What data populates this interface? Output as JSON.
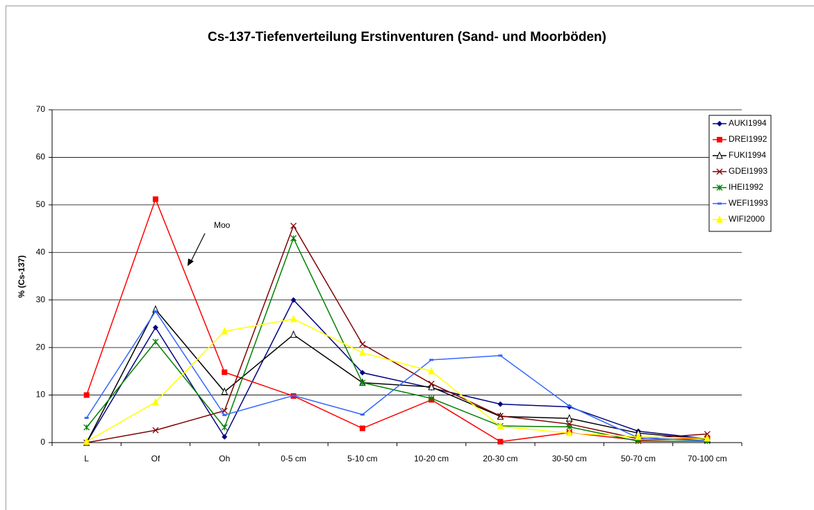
{
  "chart_data": {
    "type": "line",
    "title": "Cs-137-Tiefenverteilung Erstinventuren (Sand- und Moorböden)",
    "y_label": "% (Cs-137)",
    "annotation": "Moo",
    "categories": [
      "L",
      "Of",
      "Oh",
      "0-5 cm",
      "5-10 cm",
      "10-20 cm",
      "20-30 cm",
      "30-50 cm",
      "50-70 cm",
      "70-100 cm"
    ],
    "ylim": [
      0,
      70
    ],
    "yticks": [
      0,
      10,
      20,
      30,
      40,
      50,
      60,
      70
    ],
    "grid": true,
    "legend": "right",
    "series": [
      {
        "name": "AUKI1994",
        "color": "#000080",
        "marker": "diamond",
        "values": [
          0,
          24.2,
          1.2,
          30,
          14.7,
          11.5,
          8.1,
          7.5,
          2.4,
          0.8
        ]
      },
      {
        "name": "DREI1992",
        "color": "#ff0000",
        "marker": "square",
        "values": [
          10,
          51.2,
          14.8,
          9.8,
          3,
          9,
          0.2,
          2.1,
          0.5,
          0.9
        ]
      },
      {
        "name": "FUKI1994",
        "color": "#000000",
        "marker": "triangle-open",
        "values": [
          0,
          28,
          10.7,
          22.7,
          12.6,
          11.7,
          5.5,
          5.1,
          2,
          0.7
        ]
      },
      {
        "name": "GDEI1993",
        "color": "#800000",
        "marker": "x",
        "values": [
          0,
          2.6,
          6.7,
          45.6,
          20.7,
          12.4,
          5.6,
          3.9,
          0.8,
          1.8
        ]
      },
      {
        "name": "IHEI1992",
        "color": "#008000",
        "marker": "star",
        "values": [
          3.2,
          21.2,
          3.2,
          43,
          12.6,
          9.3,
          3.5,
          3.3,
          0.3,
          0.3
        ]
      },
      {
        "name": "WEFI1993",
        "color": "#3366ff",
        "marker": "dash",
        "values": [
          5.2,
          27.6,
          5.8,
          9.9,
          5.9,
          17.4,
          18.3,
          7.7,
          1,
          0.4
        ]
      },
      {
        "name": "WIFI2000",
        "color": "#ffff00",
        "marker": "triangle",
        "values": [
          0.2,
          8.5,
          23.4,
          26,
          18.9,
          15,
          3.4,
          2,
          1.2,
          0.9
        ]
      }
    ]
  }
}
